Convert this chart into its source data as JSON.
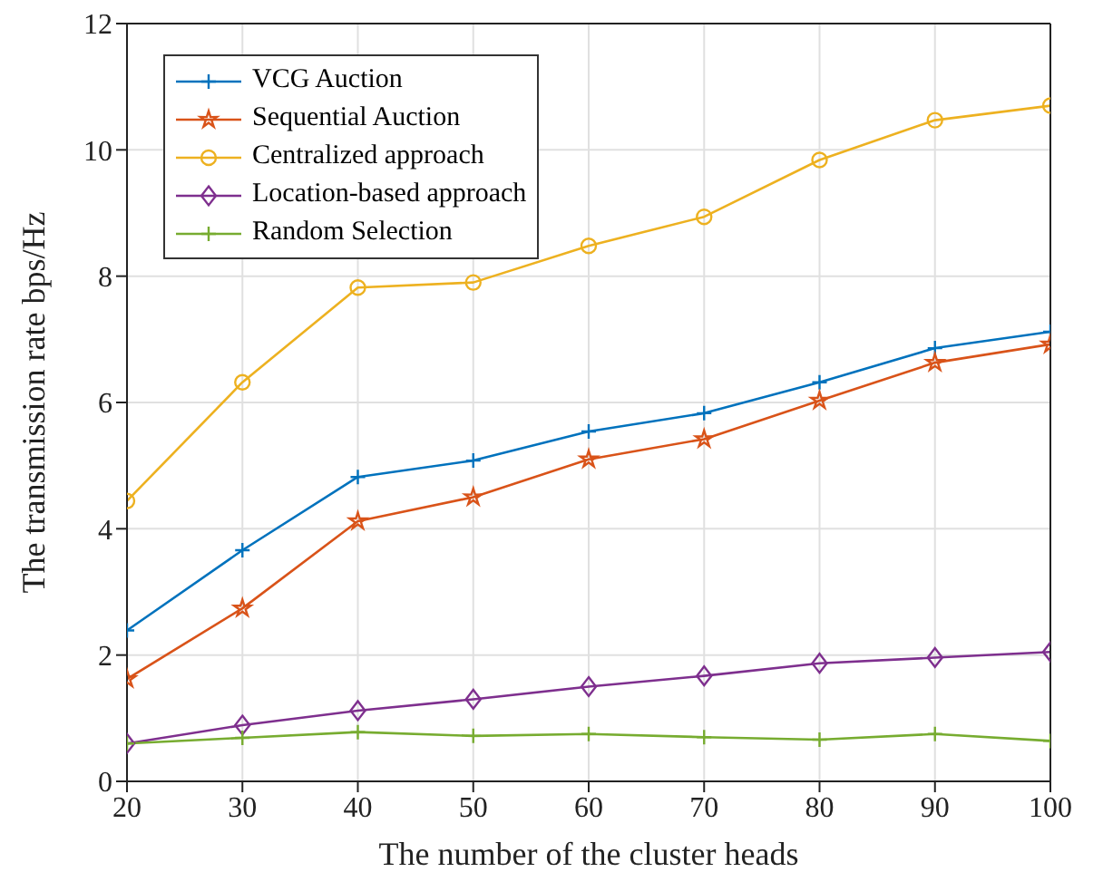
{
  "chart_data": {
    "type": "line",
    "xlabel": "The number of the cluster heads",
    "ylabel": "The transmission rate bps/Hz",
    "x": [
      20,
      30,
      40,
      50,
      60,
      70,
      80,
      90,
      100
    ],
    "series": [
      {
        "name": "VCG Auction",
        "color": "#0072bd",
        "marker": "cross",
        "values": [
          2.39,
          3.66,
          4.82,
          5.08,
          5.54,
          5.83,
          6.32,
          6.86,
          7.12
        ]
      },
      {
        "name": "Sequential Auction",
        "color": "#d95319",
        "marker": "star",
        "values": [
          1.62,
          2.74,
          4.12,
          4.5,
          5.1,
          5.42,
          6.03,
          6.63,
          6.92
        ]
      },
      {
        "name": "Centralized approach",
        "color": "#edb120",
        "marker": "circle",
        "values": [
          4.44,
          6.32,
          7.82,
          7.9,
          8.48,
          8.94,
          9.84,
          10.47,
          10.7
        ]
      },
      {
        "name": "Location-based approach",
        "color": "#7e2f8e",
        "marker": "diamond",
        "values": [
          0.6,
          0.89,
          1.12,
          1.3,
          1.5,
          1.67,
          1.87,
          1.96,
          2.05
        ]
      },
      {
        "name": "Random Selection",
        "color": "#77ac30",
        "marker": "cross",
        "values": [
          0.6,
          0.69,
          0.78,
          0.72,
          0.75,
          0.7,
          0.66,
          0.75,
          0.64
        ]
      }
    ],
    "xlim": [
      20,
      100
    ],
    "xticks": [
      20,
      30,
      40,
      50,
      60,
      70,
      80,
      90,
      100
    ],
    "ylim": [
      0,
      12
    ],
    "yticks": [
      0,
      2,
      4,
      6,
      8,
      10,
      12
    ],
    "grid": true,
    "legend": "top left",
    "line_style": "solid"
  }
}
